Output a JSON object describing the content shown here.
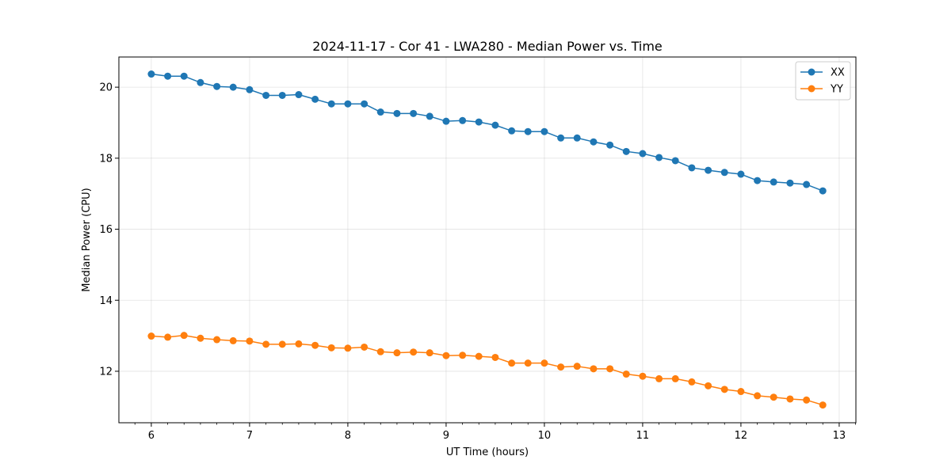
{
  "chart_data": {
    "type": "line",
    "title": "2024-11-17 - Cor 41 - LWA280 - Median Power vs. Time",
    "xlabel": "UT Time (hours)",
    "ylabel": "Median Power (CPU)",
    "xlim": [
      5.67,
      13.17
    ],
    "ylim": [
      10.55,
      20.85
    ],
    "xticks": [
      6,
      7,
      8,
      9,
      10,
      11,
      12,
      13
    ],
    "yticks": [
      12,
      14,
      16,
      18,
      20
    ],
    "grid": true,
    "legend_position": "top-right",
    "x": [
      6.0,
      6.167,
      6.333,
      6.5,
      6.667,
      6.833,
      7.0,
      7.167,
      7.333,
      7.5,
      7.667,
      7.833,
      8.0,
      8.167,
      8.333,
      8.5,
      8.667,
      8.833,
      9.0,
      9.167,
      9.333,
      9.5,
      9.667,
      9.833,
      10.0,
      10.167,
      10.333,
      10.5,
      10.667,
      10.833,
      11.0,
      11.167,
      11.333,
      11.5,
      11.667,
      11.833,
      12.0,
      12.167,
      12.333,
      12.5,
      12.667,
      12.833
    ],
    "series": [
      {
        "name": "XX",
        "color": "#1f77b4",
        "values": [
          20.37,
          20.31,
          20.31,
          20.13,
          20.02,
          20.0,
          19.93,
          19.77,
          19.77,
          19.79,
          19.66,
          19.53,
          19.53,
          19.53,
          19.3,
          19.26,
          19.26,
          19.18,
          19.04,
          19.06,
          19.02,
          18.93,
          18.77,
          18.75,
          18.75,
          18.57,
          18.57,
          18.46,
          18.37,
          18.19,
          18.13,
          18.02,
          17.93,
          17.73,
          17.66,
          17.6,
          17.55,
          17.37,
          17.33,
          17.3,
          17.26,
          17.08
        ]
      },
      {
        "name": "YY",
        "color": "#ff7f0e",
        "values": [
          12.99,
          12.96,
          13.01,
          12.93,
          12.89,
          12.86,
          12.85,
          12.76,
          12.76,
          12.77,
          12.73,
          12.66,
          12.65,
          12.68,
          12.55,
          12.52,
          12.54,
          12.52,
          12.44,
          12.45,
          12.42,
          12.39,
          12.23,
          12.23,
          12.23,
          12.12,
          12.14,
          12.07,
          12.07,
          11.92,
          11.86,
          11.79,
          11.79,
          11.7,
          11.59,
          11.49,
          11.43,
          11.31,
          11.27,
          11.22,
          11.19,
          11.05
        ]
      }
    ]
  }
}
